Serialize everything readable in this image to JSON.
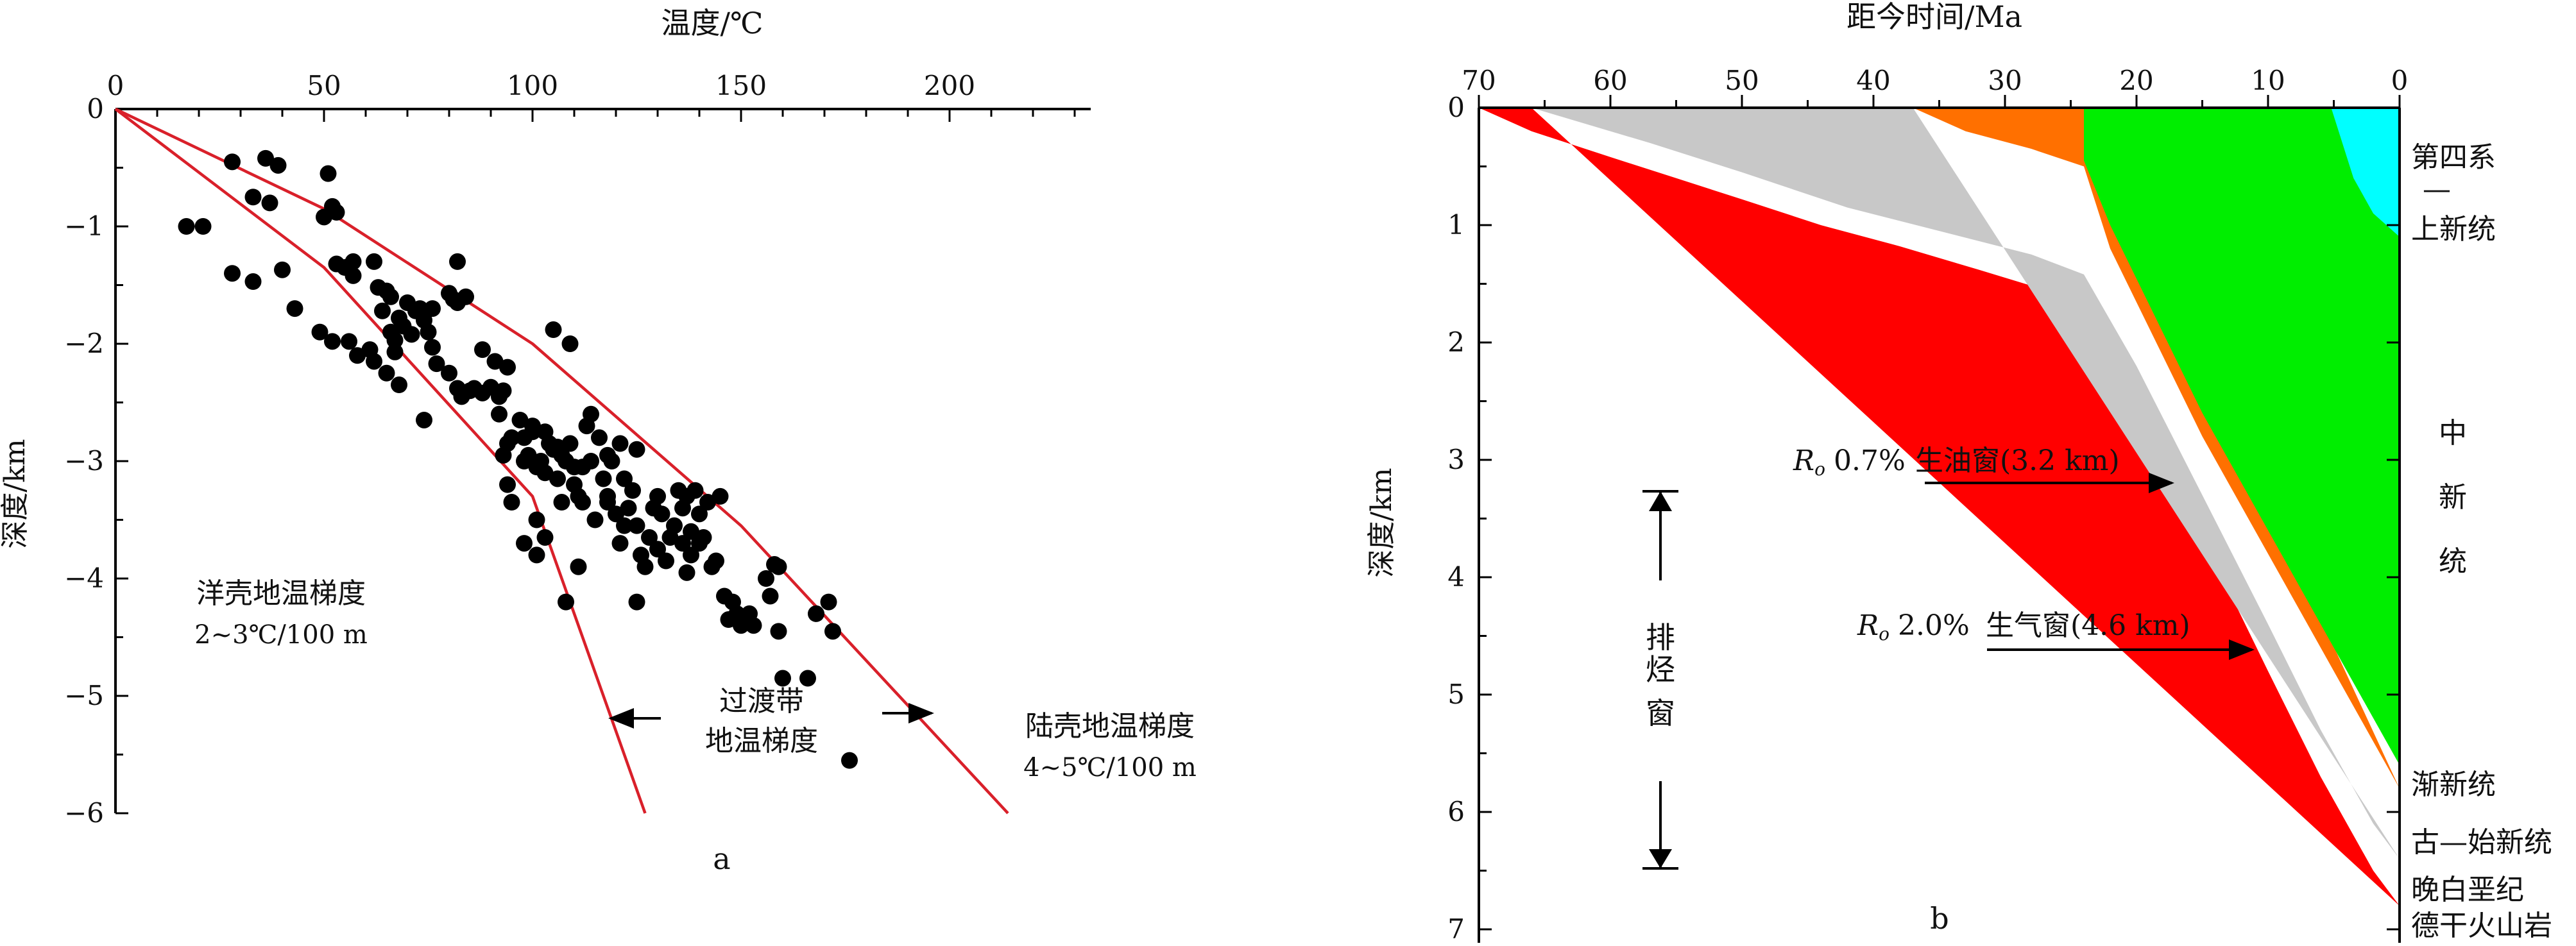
{
  "chart_data": [
    {
      "type": "scatter",
      "panel_label": "a",
      "xlabel": "温度/℃",
      "ylabel": "深度/km",
      "xlim": [
        0,
        240
      ],
      "ylim": [
        -6,
        0
      ],
      "x_ticks": [
        "0",
        "50",
        "100",
        "150",
        "200"
      ],
      "y_ticks": [
        "0",
        "−1",
        "−2",
        "−3",
        "−4",
        "−5",
        "−6"
      ],
      "annotations": {
        "oceanic_line1": "洋壳地温梯度",
        "oceanic_line2": "2~3℃/100 m",
        "transition_line1": "过渡带",
        "transition_line2": "地温梯度",
        "continental_line1": "陆壳地温梯度",
        "continental_line2": "4~5℃/100 m"
      },
      "lines": [
        {
          "points": [
            [
              0,
              0
            ],
            [
              50,
              -1.35
            ],
            [
              100,
              -3.3
            ],
            [
              127,
              -6.0
            ]
          ]
        },
        {
          "points": [
            [
              0,
              0
            ],
            [
              50,
              -0.85
            ],
            [
              100,
              -2.0
            ],
            [
              150,
              -3.55
            ],
            [
              214,
              -6.0
            ]
          ]
        }
      ],
      "points": [
        [
          17,
          -1.0
        ],
        [
          21,
          -1.0
        ],
        [
          28,
          -0.45
        ],
        [
          36,
          -0.42
        ],
        [
          39,
          -0.48
        ],
        [
          33,
          -0.75
        ],
        [
          37,
          -0.8
        ],
        [
          28,
          -1.4
        ],
        [
          33,
          -1.47
        ],
        [
          40,
          -1.37
        ],
        [
          43,
          -1.7
        ],
        [
          49,
          -1.9
        ],
        [
          50,
          -0.92
        ],
        [
          51,
          -0.55
        ],
        [
          52,
          -0.83
        ],
        [
          53,
          -0.88
        ],
        [
          53,
          -1.32
        ],
        [
          55,
          -1.35
        ],
        [
          57,
          -1.3
        ],
        [
          57,
          -1.42
        ],
        [
          52,
          -1.98
        ],
        [
          56,
          -1.98
        ],
        [
          58,
          -2.1
        ],
        [
          61,
          -2.05
        ],
        [
          62,
          -2.15
        ],
        [
          62,
          -1.3
        ],
        [
          63,
          -1.52
        ],
        [
          64,
          -1.72
        ],
        [
          65,
          -1.55
        ],
        [
          66,
          -1.6
        ],
        [
          66,
          -1.9
        ],
        [
          67,
          -1.97
        ],
        [
          67,
          -2.07
        ],
        [
          68,
          -1.78
        ],
        [
          69,
          -1.85
        ],
        [
          70,
          -1.65
        ],
        [
          71,
          -1.92
        ],
        [
          72,
          -1.72
        ],
        [
          73,
          -1.7
        ],
        [
          74,
          -1.8
        ],
        [
          75,
          -1.9
        ],
        [
          76,
          -1.7
        ],
        [
          76,
          -2.03
        ],
        [
          77,
          -2.17
        ],
        [
          65,
          -2.25
        ],
        [
          68,
          -2.35
        ],
        [
          74,
          -2.65
        ],
        [
          80,
          -1.57
        ],
        [
          81,
          -1.62
        ],
        [
          82,
          -1.65
        ],
        [
          82,
          -1.3
        ],
        [
          84,
          -1.6
        ],
        [
          80,
          -2.25
        ],
        [
          82,
          -2.38
        ],
        [
          83,
          -2.45
        ],
        [
          85,
          -2.4
        ],
        [
          86,
          -2.38
        ],
        [
          88,
          -2.05
        ],
        [
          88,
          -2.42
        ],
        [
          90,
          -2.37
        ],
        [
          91,
          -2.15
        ],
        [
          92,
          -2.45
        ],
        [
          93,
          -2.4
        ],
        [
          94,
          -2.2
        ],
        [
          92,
          -2.6
        ],
        [
          93,
          -2.95
        ],
        [
          94,
          -2.85
        ],
        [
          95,
          -2.8
        ],
        [
          94,
          -3.2
        ],
        [
          95,
          -3.35
        ],
        [
          97,
          -2.65
        ],
        [
          98,
          -2.8
        ],
        [
          98,
          -3.0
        ],
        [
          99,
          -2.95
        ],
        [
          100,
          -2.7
        ],
        [
          100,
          -2.75
        ],
        [
          101,
          -3.05
        ],
        [
          102,
          -3.0
        ],
        [
          103,
          -2.75
        ],
        [
          103,
          -3.1
        ],
        [
          104,
          -2.85
        ],
        [
          98,
          -3.7
        ],
        [
          101,
          -3.5
        ],
        [
          103,
          -3.65
        ],
        [
          105,
          -2.9
        ],
        [
          106,
          -2.88
        ],
        [
          106,
          -3.15
        ],
        [
          107,
          -2.95
        ],
        [
          107,
          -3.35
        ],
        [
          108,
          -3.0
        ],
        [
          109,
          -2.85
        ],
        [
          110,
          -3.2
        ],
        [
          105,
          -1.88
        ],
        [
          109,
          -2.0
        ],
        [
          110,
          -3.05
        ],
        [
          111,
          -3.3
        ],
        [
          112,
          -3.35
        ],
        [
          112,
          -3.05
        ],
        [
          113,
          -2.7
        ],
        [
          114,
          -2.6
        ],
        [
          114,
          -3.0
        ],
        [
          115,
          -3.5
        ],
        [
          116,
          -2.8
        ],
        [
          117,
          -3.15
        ],
        [
          118,
          -2.95
        ],
        [
          118,
          -3.3
        ],
        [
          119,
          -3.0
        ],
        [
          120,
          -3.45
        ],
        [
          121,
          -2.85
        ],
        [
          122,
          -3.15
        ],
        [
          121,
          -3.7
        ],
        [
          122,
          -3.55
        ],
        [
          123,
          -3.4
        ],
        [
          124,
          -3.25
        ],
        [
          125,
          -2.9
        ],
        [
          125,
          -3.55
        ],
        [
          126,
          -3.8
        ],
        [
          127,
          -3.9
        ],
        [
          128,
          -3.65
        ],
        [
          129,
          -3.4
        ],
        [
          130,
          -3.3
        ],
        [
          130,
          -3.75
        ],
        [
          131,
          -3.45
        ],
        [
          132,
          -3.85
        ],
        [
          133,
          -3.65
        ],
        [
          134,
          -3.55
        ],
        [
          135,
          -3.25
        ],
        [
          136,
          -3.4
        ],
        [
          136,
          -3.7
        ],
        [
          137,
          -3.3
        ],
        [
          137,
          -3.95
        ],
        [
          138,
          -3.6
        ],
        [
          138,
          -3.8
        ],
        [
          139,
          -3.25
        ],
        [
          140,
          -3.45
        ],
        [
          140,
          -3.7
        ],
        [
          141,
          -3.65
        ],
        [
          142,
          -3.35
        ],
        [
          143,
          -3.9
        ],
        [
          144,
          -3.85
        ],
        [
          145,
          -3.3
        ],
        [
          146,
          -4.15
        ],
        [
          147,
          -4.35
        ],
        [
          148,
          -4.2
        ],
        [
          149,
          -4.3
        ],
        [
          150,
          -4.4
        ],
        [
          152,
          -4.3
        ],
        [
          153,
          -4.4
        ],
        [
          156,
          -4.0
        ],
        [
          157,
          -4.15
        ],
        [
          158,
          -3.88
        ],
        [
          159,
          -3.9
        ],
        [
          159,
          -4.45
        ],
        [
          160,
          -4.85
        ],
        [
          166,
          -4.85
        ],
        [
          168,
          -4.3
        ],
        [
          171,
          -4.2
        ],
        [
          172,
          -4.45
        ],
        [
          101,
          -3.8
        ],
        [
          108,
          -4.2
        ],
        [
          111,
          -3.9
        ],
        [
          118,
          -3.35
        ],
        [
          125,
          -4.2
        ],
        [
          176,
          -5.55
        ]
      ]
    },
    {
      "type": "area",
      "panel_label": "b",
      "xlabel": "距今时间/Ma",
      "ylabel": "深度/km",
      "xlim": [
        70,
        0
      ],
      "ylim": [
        7,
        0
      ],
      "x_ticks": [
        "70",
        "60",
        "50",
        "40",
        "30",
        "20",
        "10",
        "0"
      ],
      "y_ticks": [
        "0",
        "1",
        "2",
        "3",
        "4",
        "5",
        "6",
        "7"
      ],
      "colors": {
        "cretaceous": "#ff0000",
        "paleo_eocene": "#c8c8c8",
        "oligocene": "#ff7000",
        "miocene": "#00ee00",
        "quaternary_pliocene": "#00ffff"
      },
      "layers": [
        {
          "key": "quaternary_pliocene",
          "top": [
            [
              5.2,
              0
            ],
            [
              0,
              0
            ]
          ],
          "base": [
            [
              5.2,
              0
            ],
            [
              3.5,
              0.6
            ],
            [
              2,
              0.9
            ],
            [
              0,
              1.1
            ]
          ]
        },
        {
          "key": "miocene",
          "top": [
            [
              24,
              0
            ],
            [
              0,
              0
            ]
          ],
          "base": [
            [
              24,
              0.45
            ],
            [
              22,
              1.0
            ],
            [
              15,
              2.6
            ],
            [
              8,
              4.0
            ],
            [
              3,
              5.0
            ],
            [
              0,
              5.6
            ]
          ]
        },
        {
          "key": "oligocene",
          "top": [
            [
              37,
              0
            ],
            [
              24,
              0
            ]
          ],
          "base": [
            [
              37,
              0
            ],
            [
              33,
              0.2
            ],
            [
              28,
              0.35
            ],
            [
              24,
              0.5
            ],
            [
              22,
              1.2
            ],
            [
              15,
              2.8
            ],
            [
              8,
              4.2
            ],
            [
              3,
              5.2
            ],
            [
              0,
              5.8
            ]
          ]
        },
        {
          "key": "paleo_eocene",
          "top": [
            [
              66,
              0
            ],
            [
              37,
              0
            ]
          ],
          "base": [
            [
              66,
              0
            ],
            [
              57,
              0.3
            ],
            [
              50,
              0.55
            ],
            [
              42,
              0.85
            ],
            [
              35,
              1.05
            ],
            [
              28,
              1.25
            ],
            [
              24,
              1.42
            ],
            [
              20,
              2.2
            ],
            [
              15,
              3.3
            ],
            [
              10,
              4.4
            ],
            [
              6,
              5.3
            ],
            [
              2,
              6.1
            ],
            [
              0,
              6.4
            ]
          ]
        },
        {
          "key": "cretaceous",
          "top": [
            [
              70,
              0
            ],
            [
              66,
              0
            ]
          ],
          "base": [
            [
              70,
              0
            ],
            [
              66,
              0.2
            ],
            [
              60,
              0.42
            ],
            [
              55,
              0.6
            ],
            [
              50,
              0.78
            ],
            [
              44,
              1.0
            ],
            [
              38,
              1.18
            ],
            [
              32,
              1.38
            ],
            [
              27,
              1.55
            ],
            [
              24,
              1.75
            ],
            [
              20,
              2.55
            ],
            [
              15,
              3.65
            ],
            [
              10,
              4.8
            ],
            [
              6,
              5.7
            ],
            [
              2,
              6.5
            ],
            [
              0,
              6.8
            ]
          ]
        }
      ],
      "right_labels": {
        "quaternary_1": "第四系",
        "dash": "—",
        "pliocene": "上新统",
        "miocene_1": "中",
        "miocene_2": "新",
        "miocene_3": "统",
        "oligocene": "渐新统",
        "paleo_eocene": "古—始新统",
        "cretaceous_1": "晚白垩纪",
        "cretaceous_2": "德干火山岩"
      },
      "annotations": {
        "oil_ro": "R",
        "oil_sub": "o",
        "oil_pct": "0.7%",
        "oil_label": "生油窗(3.2 km)",
        "gas_ro": "R",
        "gas_sub": "o",
        "gas_pct": "2.0%",
        "gas_label": "生气窗(4.6 km)",
        "expulsion_1": "排",
        "expulsion_2": "烃",
        "expulsion_3": "窗"
      }
    }
  ]
}
